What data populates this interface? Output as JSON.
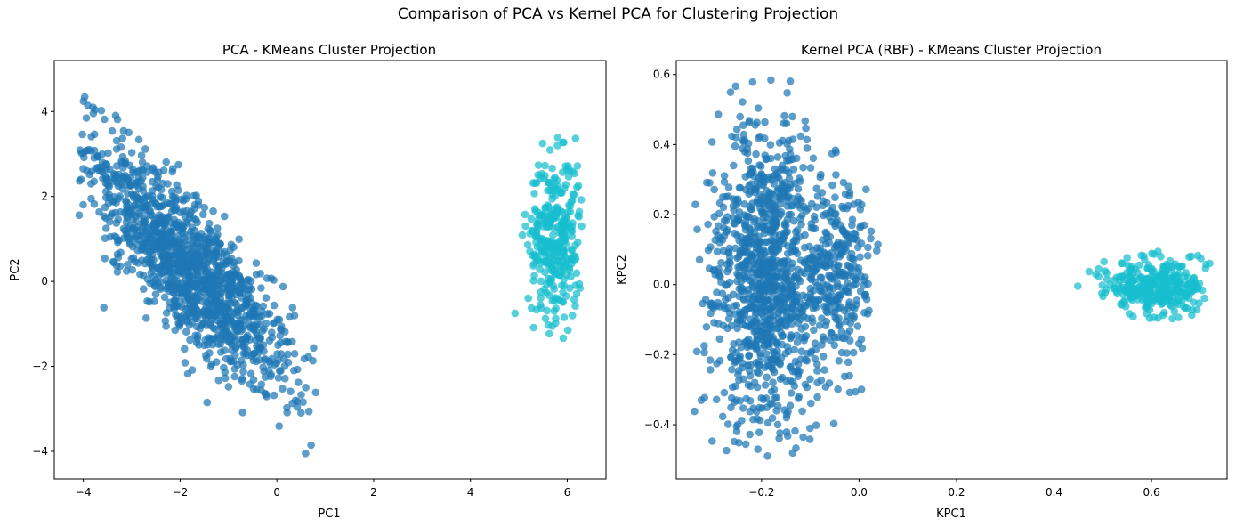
{
  "suptitle": "Comparison of PCA vs Kernel PCA for Clustering Projection",
  "colors": {
    "cluster_0": "#1f77b4",
    "cluster_1": "#17becf",
    "axes": "#000000"
  },
  "chart_data": [
    {
      "type": "scatter",
      "title": "PCA - KMeans Cluster Projection",
      "xlabel": "PC1",
      "ylabel": "PC2",
      "xlim": [
        -4.6,
        6.8
      ],
      "ylim": [
        -4.65,
        5.2
      ],
      "xticks": [
        -4,
        -2,
        0,
        2,
        4,
        6
      ],
      "yticks": [
        -4,
        -2,
        0,
        2,
        4
      ],
      "grid": false,
      "legend": "none",
      "series": [
        {
          "color": "#1f77b4",
          "shape": "elongated cloud along the anti-diagonal",
          "center": [
            -1.8,
            0.3
          ],
          "x_range": [
            -4.1,
            0.9
          ],
          "y_range": [
            -4.2,
            4.95
          ],
          "approx_points": 4000
        },
        {
          "color": "#17becf",
          "shape": "compact vertical cluster",
          "center": [
            5.7,
            1.0
          ],
          "x_range": [
            4.7,
            6.3
          ],
          "y_range": [
            -1.45,
            3.5
          ],
          "approx_points": 1000
        }
      ]
    },
    {
      "type": "scatter",
      "title": "Kernel PCA (RBF) - KMeans Cluster Projection",
      "xlabel": "KPC1",
      "ylabel": "KPC2",
      "xlim": [
        -0.375,
        0.755
      ],
      "ylim": [
        -0.555,
        0.64
      ],
      "xticks": [
        -0.2,
        0.0,
        0.2,
        0.4,
        0.6
      ],
      "yticks": [
        -0.4,
        -0.2,
        0.0,
        0.2,
        0.4,
        0.6
      ],
      "grid": false,
      "legend": "none",
      "series": [
        {
          "color": "#1f77b4",
          "shape": "tall oval lobe with small right bulge",
          "center": [
            -0.18,
            0.02
          ],
          "x_range": [
            -0.34,
            0.04
          ],
          "y_range": [
            -0.53,
            0.59
          ],
          "approx_points": 4000
        },
        {
          "color": "#17becf",
          "shape": "flat horizontal cluster",
          "center": [
            0.62,
            -0.01
          ],
          "x_range": [
            0.43,
            0.72
          ],
          "y_range": [
            -0.12,
            0.1
          ],
          "approx_points": 1000
        }
      ]
    }
  ]
}
